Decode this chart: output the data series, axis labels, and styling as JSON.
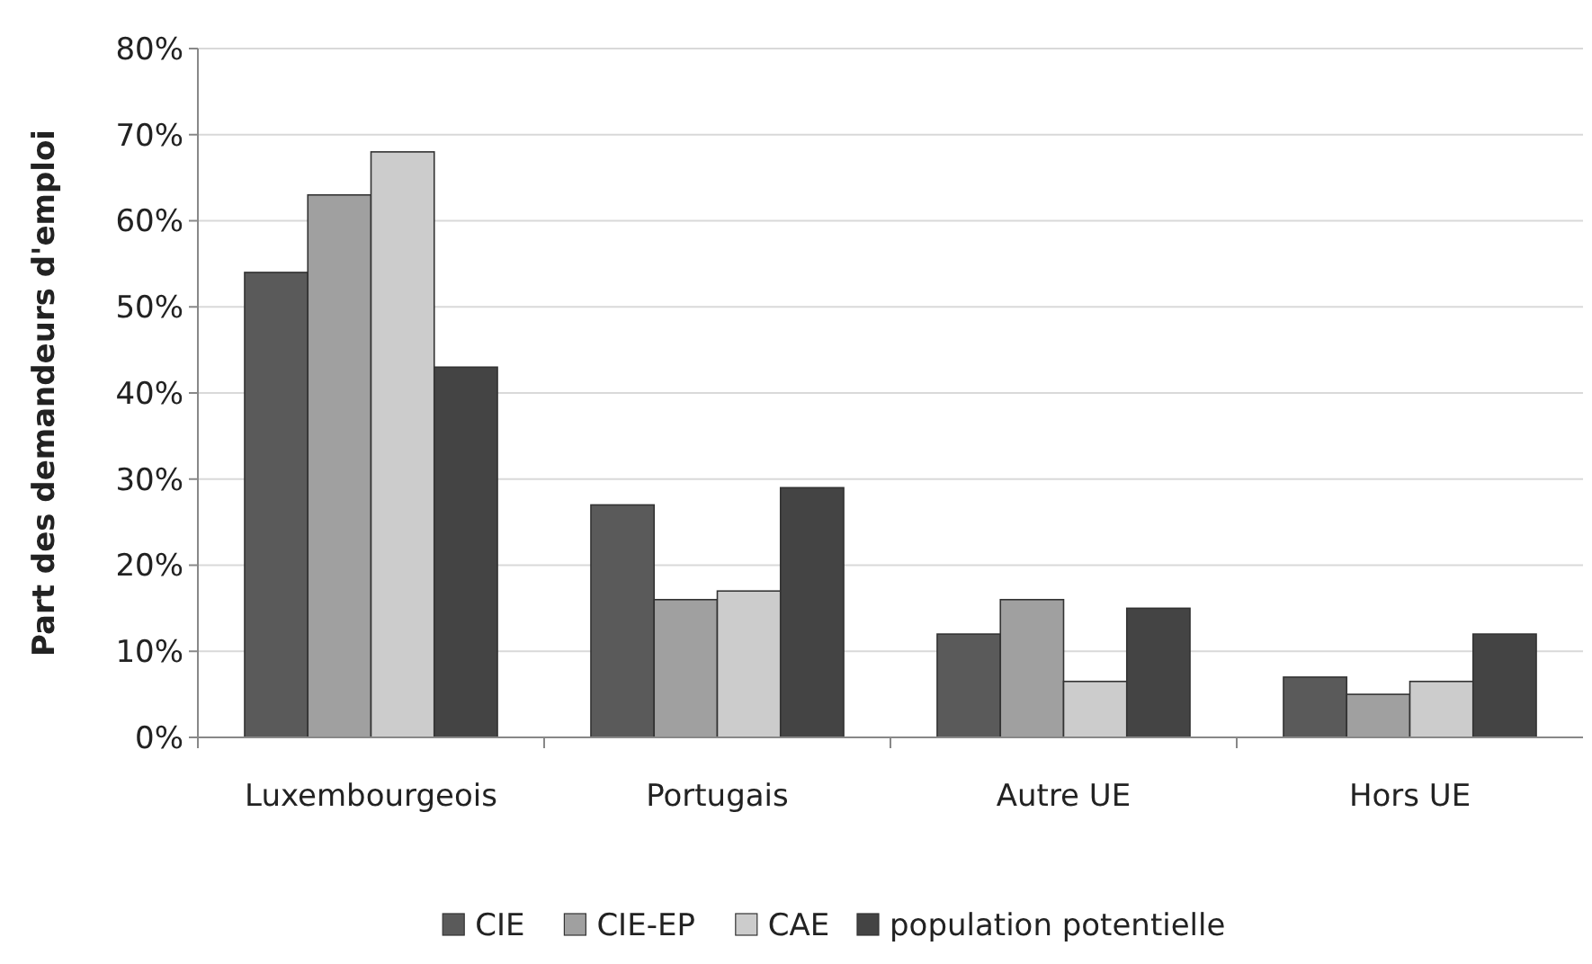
{
  "chart_data": {
    "type": "bar",
    "ylabel": "Part des demandeurs d'emploi",
    "categories": [
      "Luxembourgeois",
      "Portugais",
      "Autre UE",
      "Hors UE"
    ],
    "series": [
      {
        "name": "CIE",
        "color": "#5a5a5a",
        "values": [
          0.54,
          0.27,
          0.12,
          0.07
        ]
      },
      {
        "name": "CIE-EP",
        "color": "#a0a0a0",
        "values": [
          0.63,
          0.16,
          0.16,
          0.05
        ]
      },
      {
        "name": "CAE",
        "color": "#cccccc",
        "values": [
          0.68,
          0.17,
          0.065,
          0.065
        ]
      },
      {
        "name": "population potentielle",
        "color": "#444444",
        "values": [
          0.43,
          0.29,
          0.15,
          0.12
        ]
      }
    ],
    "ylim": [
      0,
      0.8
    ],
    "yticks": [
      {
        "value": 0,
        "label": "0%"
      },
      {
        "value": 0.1,
        "label": "10%"
      },
      {
        "value": 0.2,
        "label": "20%"
      },
      {
        "value": 0.3,
        "label": "30%"
      },
      {
        "value": 0.4,
        "label": "40%"
      },
      {
        "value": 0.5,
        "label": "50%"
      },
      {
        "value": 0.6,
        "label": "60%"
      },
      {
        "value": 0.7,
        "label": "70%"
      },
      {
        "value": 0.8,
        "label": "80%"
      }
    ],
    "grid": "y",
    "legend": "bottom"
  }
}
